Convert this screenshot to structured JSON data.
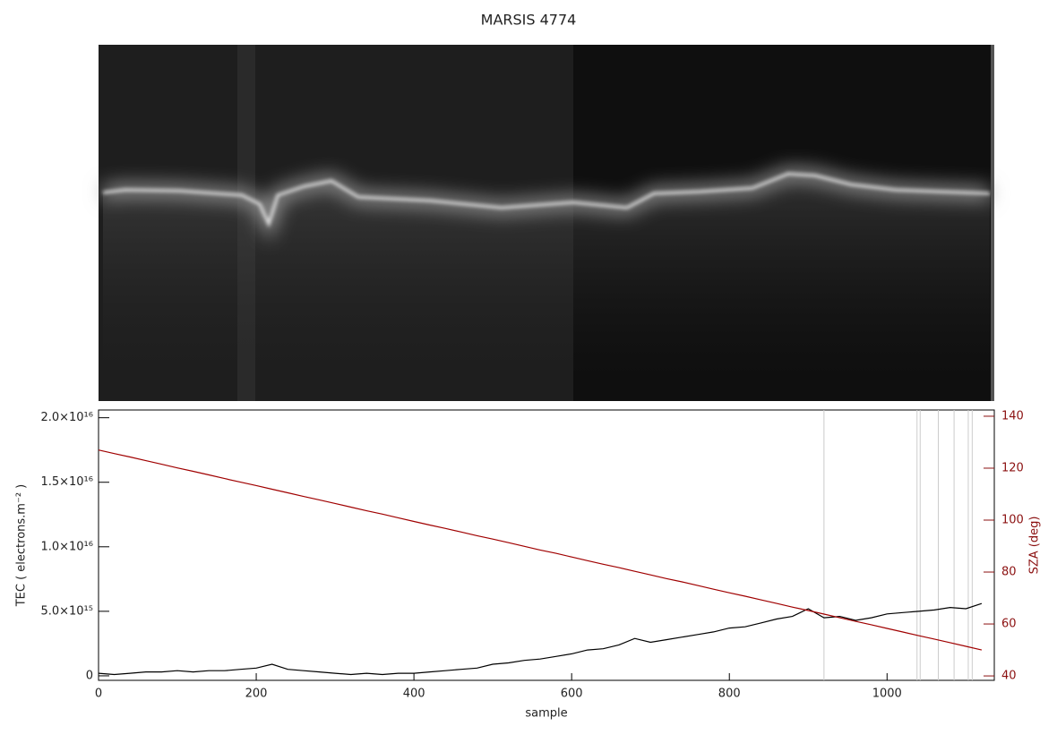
{
  "chart_data": {
    "type": "line",
    "title": "MARSIS 4774",
    "x_label": "sample",
    "y_label": "TEC ( electrons.m⁻² )",
    "y2_label": "SZA (deg)",
    "xlim": [
      0,
      1136
    ],
    "xticks": [
      0,
      200,
      400,
      600,
      800,
      1000
    ],
    "ylim": [
      -350000000000000.0,
      2.06e+16
    ],
    "yticks": [
      {
        "value": 0,
        "label": "0"
      },
      {
        "value": 5000000000000000.0,
        "label": "5.0×10¹⁵"
      },
      {
        "value": 1e+16,
        "label": "1.0×10¹⁶"
      },
      {
        "value": 1.5e+16,
        "label": "1.5×10¹⁶"
      },
      {
        "value": 2e+16,
        "label": "2.0×10¹⁶"
      }
    ],
    "y2lim": [
      38.3,
      142.4
    ],
    "y2ticks": [
      40,
      60,
      80,
      100,
      120,
      140
    ],
    "vlines": [
      920,
      1038,
      1042,
      1065,
      1085,
      1103,
      1108
    ],
    "x": [
      0,
      20,
      40,
      60,
      80,
      100,
      120,
      140,
      160,
      180,
      200,
      220,
      240,
      260,
      280,
      300,
      320,
      340,
      360,
      380,
      400,
      420,
      440,
      460,
      480,
      500,
      520,
      540,
      560,
      580,
      600,
      620,
      640,
      660,
      680,
      700,
      720,
      740,
      760,
      780,
      800,
      820,
      840,
      860,
      880,
      900,
      920,
      940,
      960,
      980,
      1000,
      1020,
      1040,
      1060,
      1080,
      1100,
      1120
    ],
    "series": [
      {
        "name": "TEC",
        "color": "#000000",
        "values": [
          200000000000000.0,
          100000000000000.0,
          200000000000000.0,
          300000000000000.0,
          300000000000000.0,
          400000000000000.0,
          300000000000000.0,
          400000000000000.0,
          400000000000000.0,
          500000000000000.0,
          600000000000000.0,
          900000000000000.0,
          500000000000000.0,
          400000000000000.0,
          300000000000000.0,
          200000000000000.0,
          100000000000000.0,
          200000000000000.0,
          100000000000000.0,
          200000000000000.0,
          200000000000000.0,
          300000000000000.0,
          400000000000000.0,
          500000000000000.0,
          600000000000000.0,
          900000000000000.0,
          1000000000000000.0,
          1200000000000000.0,
          1300000000000000.0,
          1500000000000000.0,
          1700000000000000.0,
          2000000000000000.0,
          2100000000000000.0,
          2400000000000000.0,
          2900000000000000.0,
          2600000000000000.0,
          2800000000000000.0,
          3000000000000000.0,
          3200000000000000.0,
          3400000000000000.0,
          3700000000000000.0,
          3800000000000000.0,
          4100000000000000.0,
          4400000000000000.0,
          4600000000000000.0,
          5200000000000000.0,
          4500000000000000.0,
          4600000000000000.0,
          4300000000000000.0,
          4500000000000000.0,
          4800000000000000.0,
          4900000000000000.0,
          5000000000000000.0,
          5100000000000000.0,
          5300000000000000.0,
          5200000000000000.0,
          5600000000000000.0
        ]
      },
      {
        "name": "SZA",
        "color": "#a00000",
        "axis": "y2",
        "values": [
          127.0,
          125.6,
          124.3,
          122.9,
          121.5,
          120.1,
          118.8,
          117.4,
          116.0,
          114.6,
          113.3,
          111.9,
          110.5,
          109.1,
          107.8,
          106.4,
          105.0,
          103.6,
          102.3,
          100.9,
          99.5,
          98.1,
          96.8,
          95.4,
          94.0,
          92.7,
          91.3,
          89.9,
          88.5,
          87.2,
          85.8,
          84.4,
          83.0,
          81.7,
          80.3,
          78.9,
          77.5,
          76.2,
          74.8,
          73.4,
          72.0,
          70.7,
          69.3,
          67.9,
          66.5,
          65.2,
          63.8,
          62.4,
          61.0,
          59.7,
          58.3,
          56.9,
          55.5,
          54.2,
          52.8,
          51.4,
          50.0
        ]
      }
    ]
  }
}
